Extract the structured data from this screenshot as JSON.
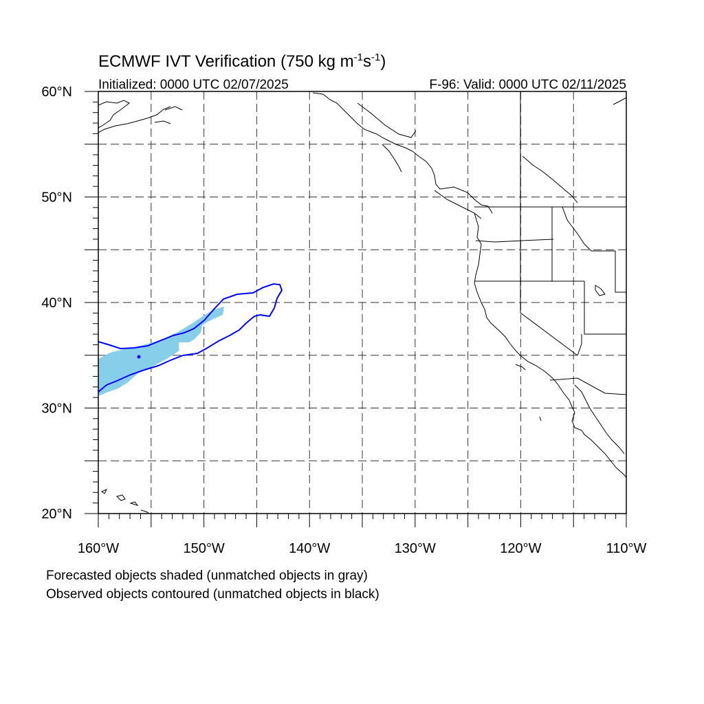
{
  "title": {
    "main": "ECMWF IVT Verification (750 kg m",
    "exp1": "-1",
    "mid": "s",
    "exp2": "-1",
    "close": ")"
  },
  "subtitle_left": "Initialized: 0000 UTC 02/07/2025",
  "subtitle_right": "F-96: Valid: 0000 UTC 02/11/2025",
  "map": {
    "lon_range": [
      -160,
      -110
    ],
    "lat_range": [
      20,
      60
    ],
    "lat_ticks": [
      {
        "value": 60,
        "label": "60°N"
      },
      {
        "value": 50,
        "label": "50°N"
      },
      {
        "value": 40,
        "label": "40°N"
      },
      {
        "value": 30,
        "label": "30°N"
      },
      {
        "value": 20,
        "label": "20°N"
      }
    ],
    "lon_ticks": [
      {
        "value": -160,
        "label": "160°W"
      },
      {
        "value": -150,
        "label": "150°W"
      },
      {
        "value": -140,
        "label": "140°W"
      },
      {
        "value": -130,
        "label": "130°W"
      },
      {
        "value": -120,
        "label": "120°W"
      },
      {
        "value": -110,
        "label": "110°W"
      }
    ],
    "grid_spacing_deg": 5,
    "grid_style": "dashed",
    "forecast_fill_color": "#87ceeb",
    "observed_contour_color": "#0000ff",
    "coastline_color": "#000000"
  },
  "footnote_1": "Forecasted objects shaded (unmatched objects in gray)",
  "footnote_2": "Observed objects contoured (unmatched objects in black)"
}
